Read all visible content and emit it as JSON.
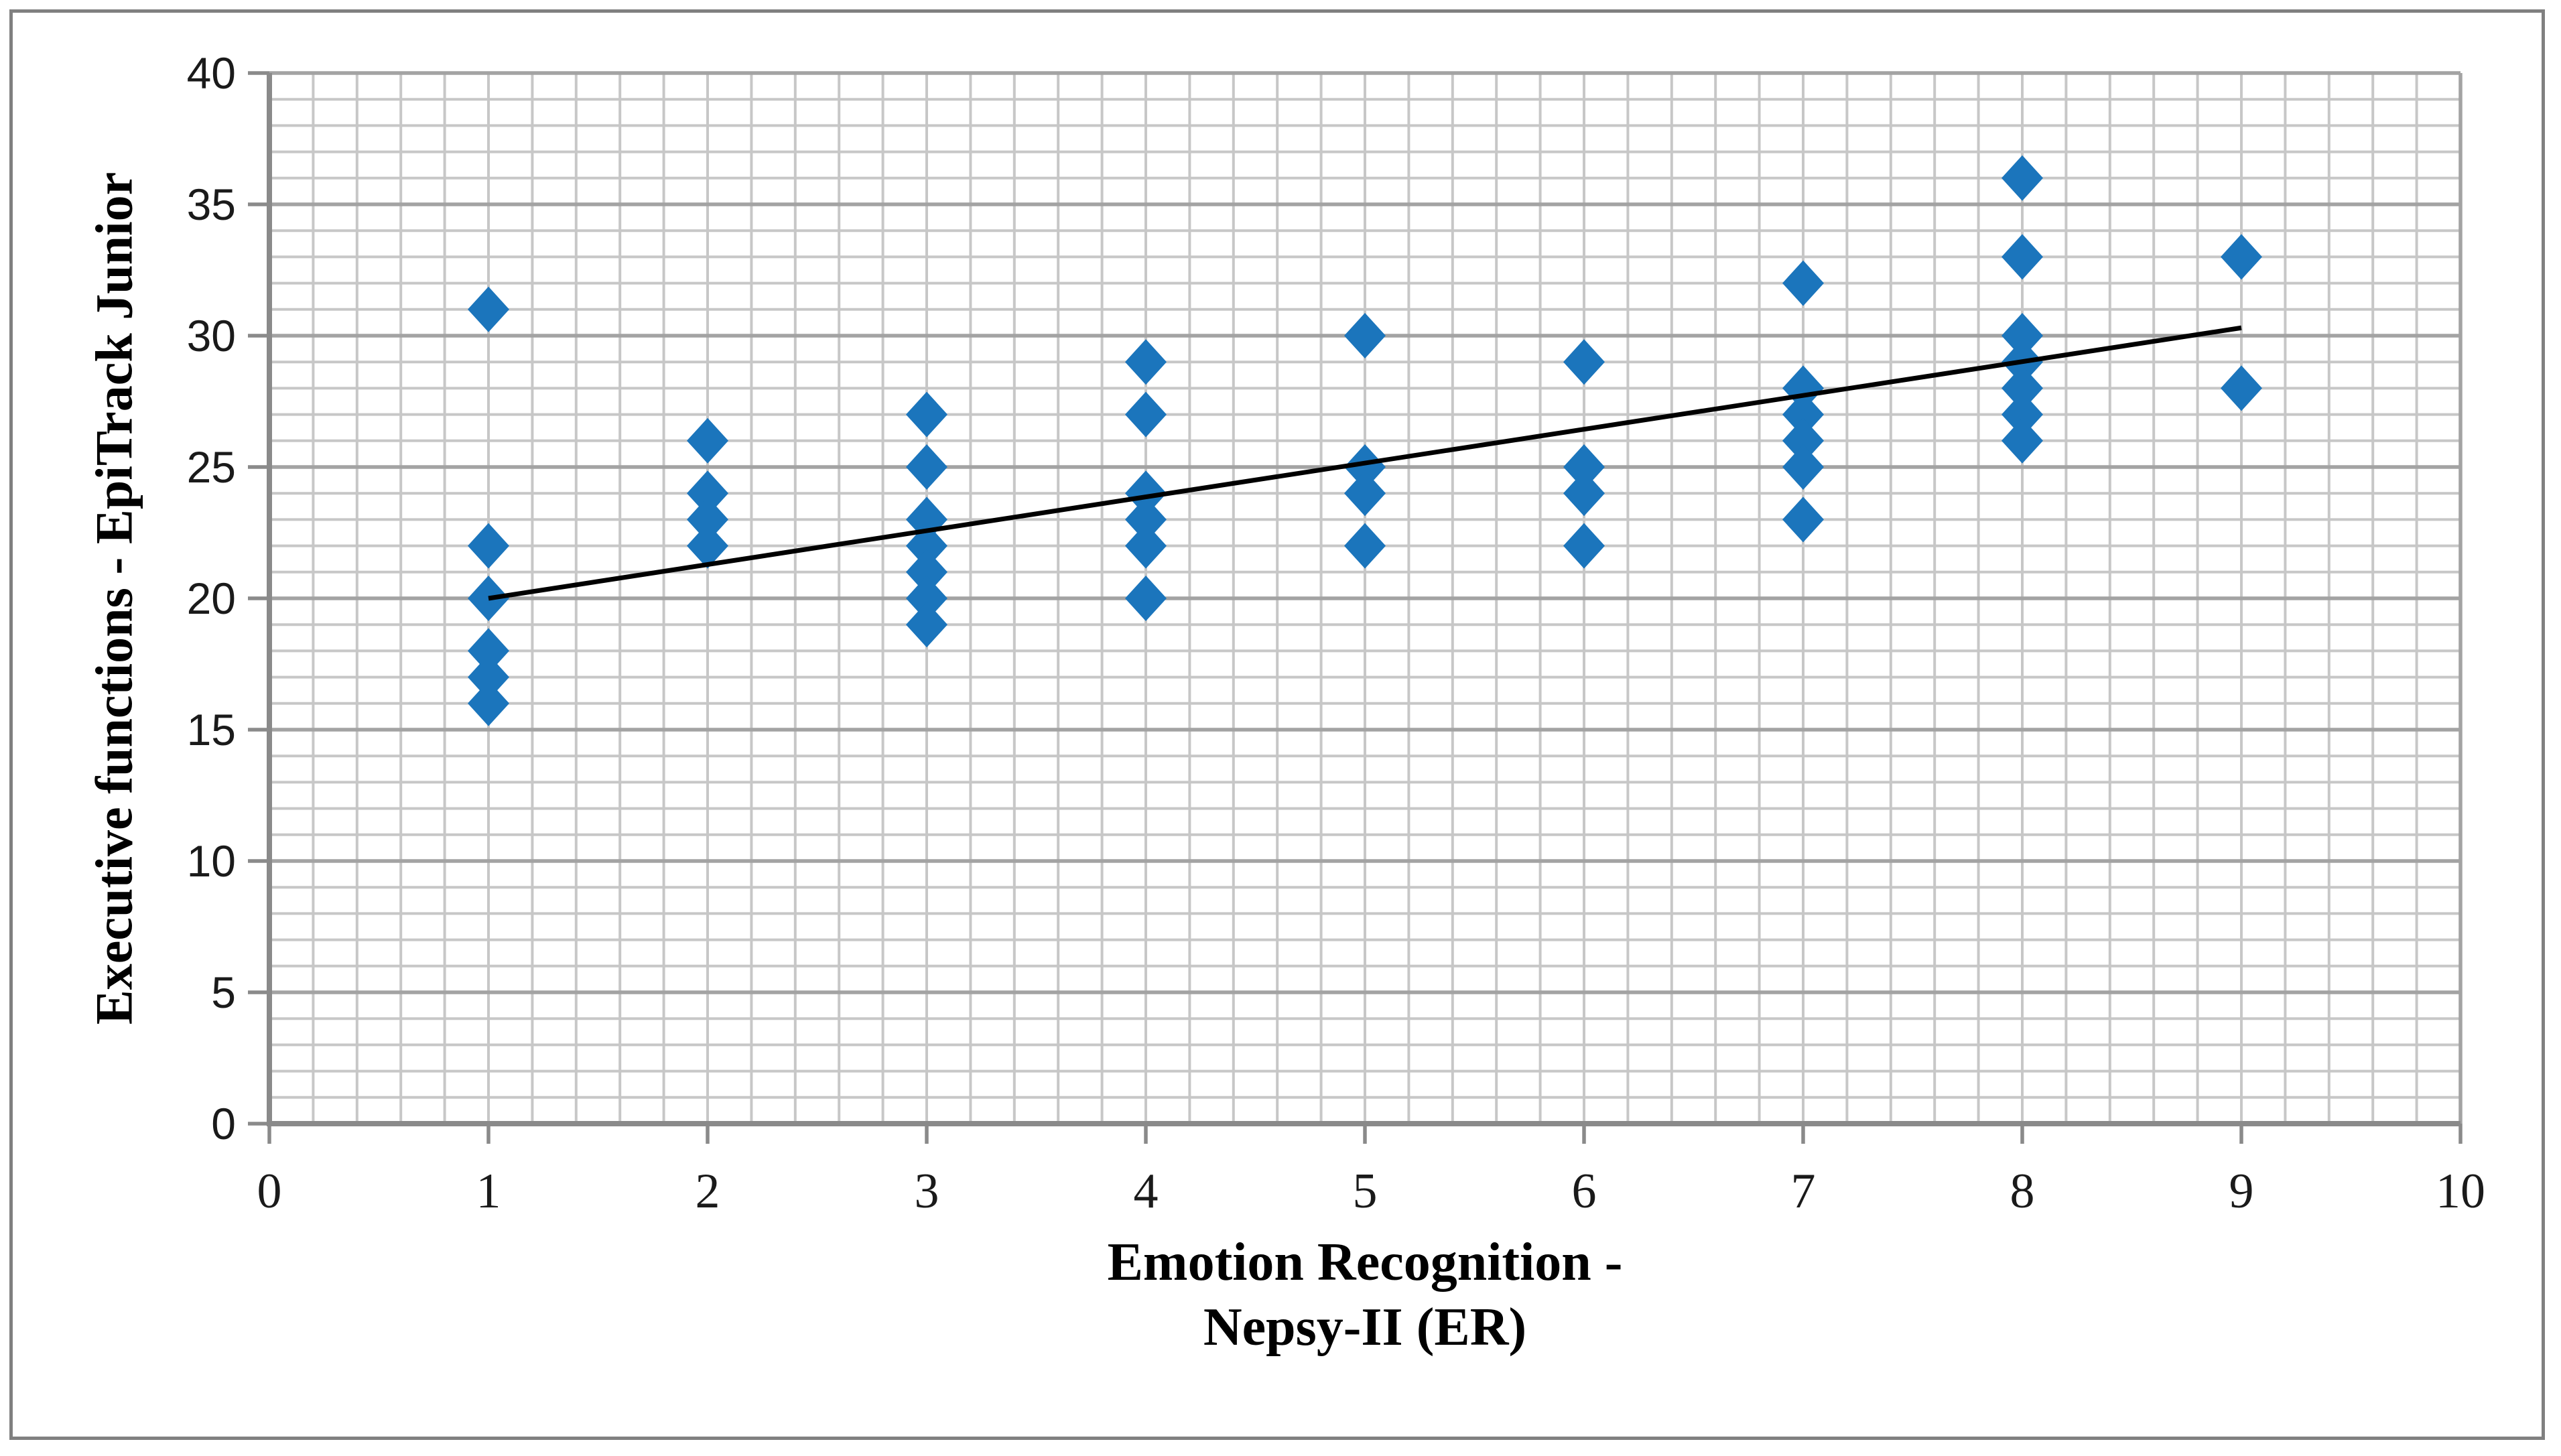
{
  "frame": {
    "border_color": "#808080",
    "background": "#ffffff"
  },
  "chart_data": {
    "type": "scatter",
    "title": "",
    "xlabel_line1": "Emotion Recognition -",
    "xlabel_line2": "Nepsy-II (ER)",
    "ylabel": "Executive functions - EpiTrack Junior",
    "xlim": [
      0,
      10
    ],
    "ylim": [
      0,
      40
    ],
    "x_tick_labels": [
      "0",
      "1",
      "2",
      "3",
      "4",
      "5",
      "6",
      "7",
      "8",
      "9",
      "10"
    ],
    "y_tick_labels": [
      "0",
      "5",
      "10",
      "15",
      "20",
      "25",
      "30",
      "35",
      "40"
    ],
    "x_minor_grid_step": 0.2,
    "y_minor_grid_step": 1,
    "y_major_grid_step": 5,
    "grid": true,
    "legend": false,
    "marker": "diamond",
    "points": [
      [
        1,
        31
      ],
      [
        1,
        22
      ],
      [
        1,
        20
      ],
      [
        1,
        18
      ],
      [
        1,
        17
      ],
      [
        1,
        16
      ],
      [
        2,
        26
      ],
      [
        2,
        24
      ],
      [
        2,
        23
      ],
      [
        2,
        22
      ],
      [
        3,
        27
      ],
      [
        3,
        25
      ],
      [
        3,
        23
      ],
      [
        3,
        22
      ],
      [
        3,
        21
      ],
      [
        3,
        20
      ],
      [
        3,
        19
      ],
      [
        4,
        29
      ],
      [
        4,
        27
      ],
      [
        4,
        24
      ],
      [
        4,
        23
      ],
      [
        4,
        22
      ],
      [
        4,
        20
      ],
      [
        5,
        30
      ],
      [
        5,
        25
      ],
      [
        5,
        24
      ],
      [
        5,
        22
      ],
      [
        6,
        29
      ],
      [
        6,
        25
      ],
      [
        6,
        24
      ],
      [
        6,
        22
      ],
      [
        7,
        32
      ],
      [
        7,
        28
      ],
      [
        7,
        27
      ],
      [
        7,
        26
      ],
      [
        7,
        25
      ],
      [
        7,
        23
      ],
      [
        8,
        36
      ],
      [
        8,
        33
      ],
      [
        8,
        30
      ],
      [
        8,
        29
      ],
      [
        8,
        28
      ],
      [
        8,
        27
      ],
      [
        8,
        26
      ],
      [
        9,
        33
      ],
      [
        9,
        28
      ]
    ],
    "trendline": {
      "x1": 1,
      "y1": 20,
      "x2": 9,
      "y2": 30.3
    },
    "colors": {
      "marker": "#1b75bc",
      "trendline": "#000000",
      "grid_minor": "#c7c7c7",
      "grid_major": "#a3a3a3",
      "axis": "#8a8a8a",
      "tick": "#8a8a8a",
      "text": "#000000"
    }
  }
}
